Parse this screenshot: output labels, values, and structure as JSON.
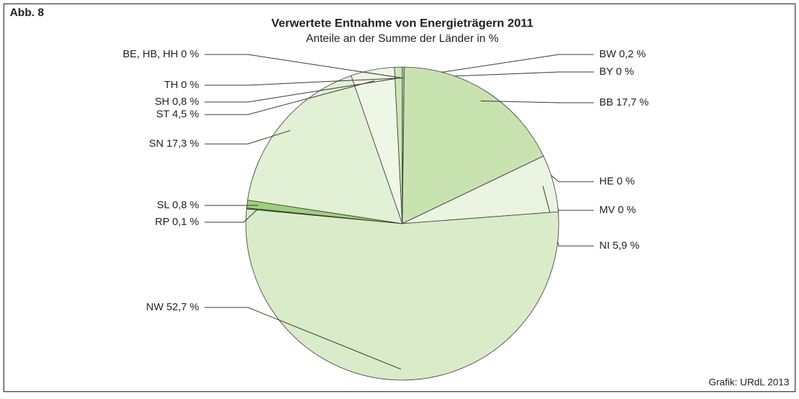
{
  "chart_data": {
    "type": "pie",
    "badge": "Abb. 8",
    "title": "Verwertete Entnahme von Energieträgern 2011",
    "subtitle": "Anteile an der Summe der Länder in %",
    "source": "Grafik: URdL 2013",
    "categories": [
      "BW",
      "BY",
      "BB",
      "HE",
      "MV",
      "NI",
      "NW",
      "RP",
      "SL",
      "SN",
      "ST",
      "SH",
      "TH",
      "BE, HB, HH"
    ],
    "values": [
      0.2,
      0,
      17.7,
      0,
      0,
      5.9,
      52.7,
      0.1,
      0.8,
      17.3,
      4.5,
      0.8,
      0,
      0
    ],
    "value_labels": [
      "0,2 %",
      "0 %",
      "17,7 %",
      "0 %",
      "0 %",
      "5,9 %",
      "52,7 %",
      "0,1 %",
      "0,8 %",
      "17,3 %",
      "4,5 %",
      "0,8 %",
      "0 %",
      "0 %"
    ],
    "colors": [
      "#c9e3b0",
      "#c9e3b0",
      "#c9e3b0",
      "#eaf4e0",
      "#eaf4e0",
      "#eaf4e0",
      "#d9ebc8",
      "#6aa84f",
      "#9fce7c",
      "#e2f0d5",
      "#eef6e6",
      "#cde6b6",
      "#cde6b6",
      "#cde6b6"
    ]
  }
}
